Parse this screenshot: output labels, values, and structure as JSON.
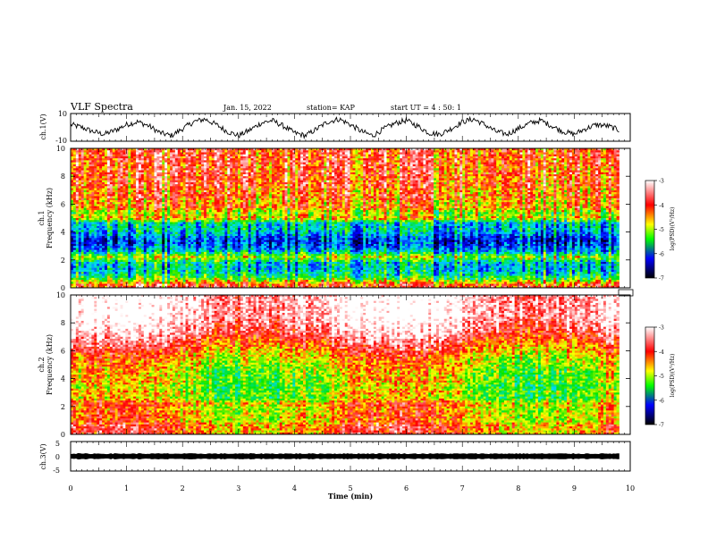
{
  "header": {
    "title": "VLF Spectra",
    "date": "Jan. 15, 2022",
    "station": "station= KAP",
    "start": "start UT =  4 : 50: 1"
  },
  "chart_data": [
    {
      "id": "ch1-waveform",
      "type": "line",
      "ylabel": "ch.1(V)",
      "ylim": [
        -10,
        10
      ],
      "yticks": [
        "10",
        "-10"
      ],
      "xlim": [
        0,
        10
      ],
      "series": [
        {
          "x": [
            0.0,
            0.2,
            0.4,
            0.6,
            0.8,
            1.0,
            1.2,
            1.4,
            1.6,
            1.8,
            2.0,
            2.2,
            2.4,
            2.6,
            2.8,
            3.0,
            3.2,
            3.4,
            3.6,
            3.8,
            4.0,
            4.2,
            4.4,
            4.6,
            4.8,
            5.0,
            5.2,
            5.4,
            5.6,
            5.8,
            6.0,
            6.2,
            6.4,
            6.6,
            6.8,
            7.0,
            7.2,
            7.4,
            7.6,
            7.8,
            8.0,
            8.2,
            8.4,
            8.6,
            8.8,
            9.0,
            9.2,
            9.4,
            9.6,
            9.8
          ],
          "values": [
            2,
            0,
            -3,
            -5,
            -2,
            2,
            4,
            1,
            -4,
            -6,
            -1,
            4,
            6,
            2,
            -3,
            -6,
            -2,
            3,
            5,
            1,
            -4,
            -6,
            -1,
            4,
            6,
            2,
            -3,
            -6,
            -1,
            3,
            5,
            1,
            -4,
            -5,
            -1,
            4,
            6,
            2,
            -3,
            -5,
            -1,
            3,
            5,
            1,
            -3,
            -5,
            -1,
            2,
            1,
            -2
          ]
        }
      ]
    },
    {
      "id": "ch1-spectrogram",
      "type": "heatmap",
      "ylabel": "ch.1\nFrequency (kHz)",
      "ylabel_lines": [
        "ch.1",
        "Frequency (kHz)"
      ],
      "ylim": [
        0,
        10
      ],
      "yticks": [
        "0",
        "2",
        "4",
        "6",
        "8",
        "10"
      ],
      "xlim": [
        0,
        10
      ],
      "colorbar": {
        "label": "log(PSD)(V²/Hz)",
        "ticks": [
          "-3",
          "-4",
          "-5",
          "-6",
          "-7"
        ],
        "range": [
          -7,
          -3
        ]
      },
      "profile": {
        "freq_khz": [
          0.2,
          0.6,
          1.0,
          1.4,
          1.8,
          2.2,
          2.6,
          3.0,
          3.4,
          3.8,
          4.2,
          4.6,
          5.0,
          5.4,
          5.8,
          6.2,
          6.6,
          7.0,
          7.4,
          7.8,
          8.2,
          8.6,
          9.0,
          9.4,
          9.8
        ],
        "log_psd": [
          -3.8,
          -4.8,
          -5.4,
          -5.6,
          -5.5,
          -4.6,
          -5.6,
          -6.0,
          -6.2,
          -5.8,
          -5.5,
          -5.6,
          -4.3,
          -4.7,
          -4.0,
          -4.2,
          -3.9,
          -4.1,
          -3.8,
          -3.9,
          -3.8,
          -3.9,
          -3.8,
          -3.8,
          -3.8
        ]
      }
    },
    {
      "id": "ch2-spectrogram",
      "type": "heatmap",
      "ylabel": "ch.2\nFrequency (kHz)",
      "ylabel_lines": [
        "ch.2",
        "Frequency (kHz)"
      ],
      "ylim": [
        0,
        10
      ],
      "yticks": [
        "0",
        "2",
        "4",
        "6",
        "8",
        "10"
      ],
      "xlim": [
        0,
        10
      ],
      "colorbar": {
        "label": "log(PSD)(V²/Hz)",
        "ticks": [
          "-3",
          "-4",
          "-5",
          "-6",
          "-7"
        ],
        "range": [
          -7,
          -3
        ]
      },
      "profile": {
        "freq_khz": [
          0.2,
          0.6,
          1.0,
          1.4,
          1.8,
          2.2,
          2.6,
          3.0,
          3.4,
          3.8,
          4.2,
          4.6,
          5.0,
          5.4,
          5.8,
          6.2,
          6.6,
          7.0,
          7.4,
          7.8,
          8.2,
          8.6,
          9.0,
          9.4,
          9.8
        ],
        "log_psd": [
          -4.0,
          -3.9,
          -4.3,
          -4.2,
          -4.3,
          -4.1,
          -4.7,
          -4.5,
          -4.8,
          -4.5,
          -4.6,
          -4.5,
          -4.4,
          -4.3,
          -4.1,
          -3.9,
          -3.7,
          -3.5,
          -3.3,
          -3.2,
          -3.1,
          -3.0,
          -3.0,
          -3.0,
          -3.0
        ]
      }
    },
    {
      "id": "ch3-waveform",
      "type": "line",
      "ylabel": "ch.3(V)",
      "ylim": [
        -5,
        5
      ],
      "yticks": [
        "5",
        "0",
        "-5"
      ],
      "xlim": [
        0,
        10
      ],
      "series": [
        {
          "x": [
            0,
            9.8
          ],
          "values": [
            0,
            0
          ],
          "amplitude": 0.8
        }
      ]
    }
  ],
  "xaxis": {
    "label": "Time (min)",
    "ticks": [
      "0",
      "1",
      "2",
      "3",
      "4",
      "5",
      "6",
      "7",
      "8",
      "9",
      "10"
    ]
  },
  "colors": {
    "colormap": [
      "#000000",
      "#0000ff",
      "#00ff00",
      "#ffff00",
      "#ff0000",
      "#ffffff"
    ]
  }
}
